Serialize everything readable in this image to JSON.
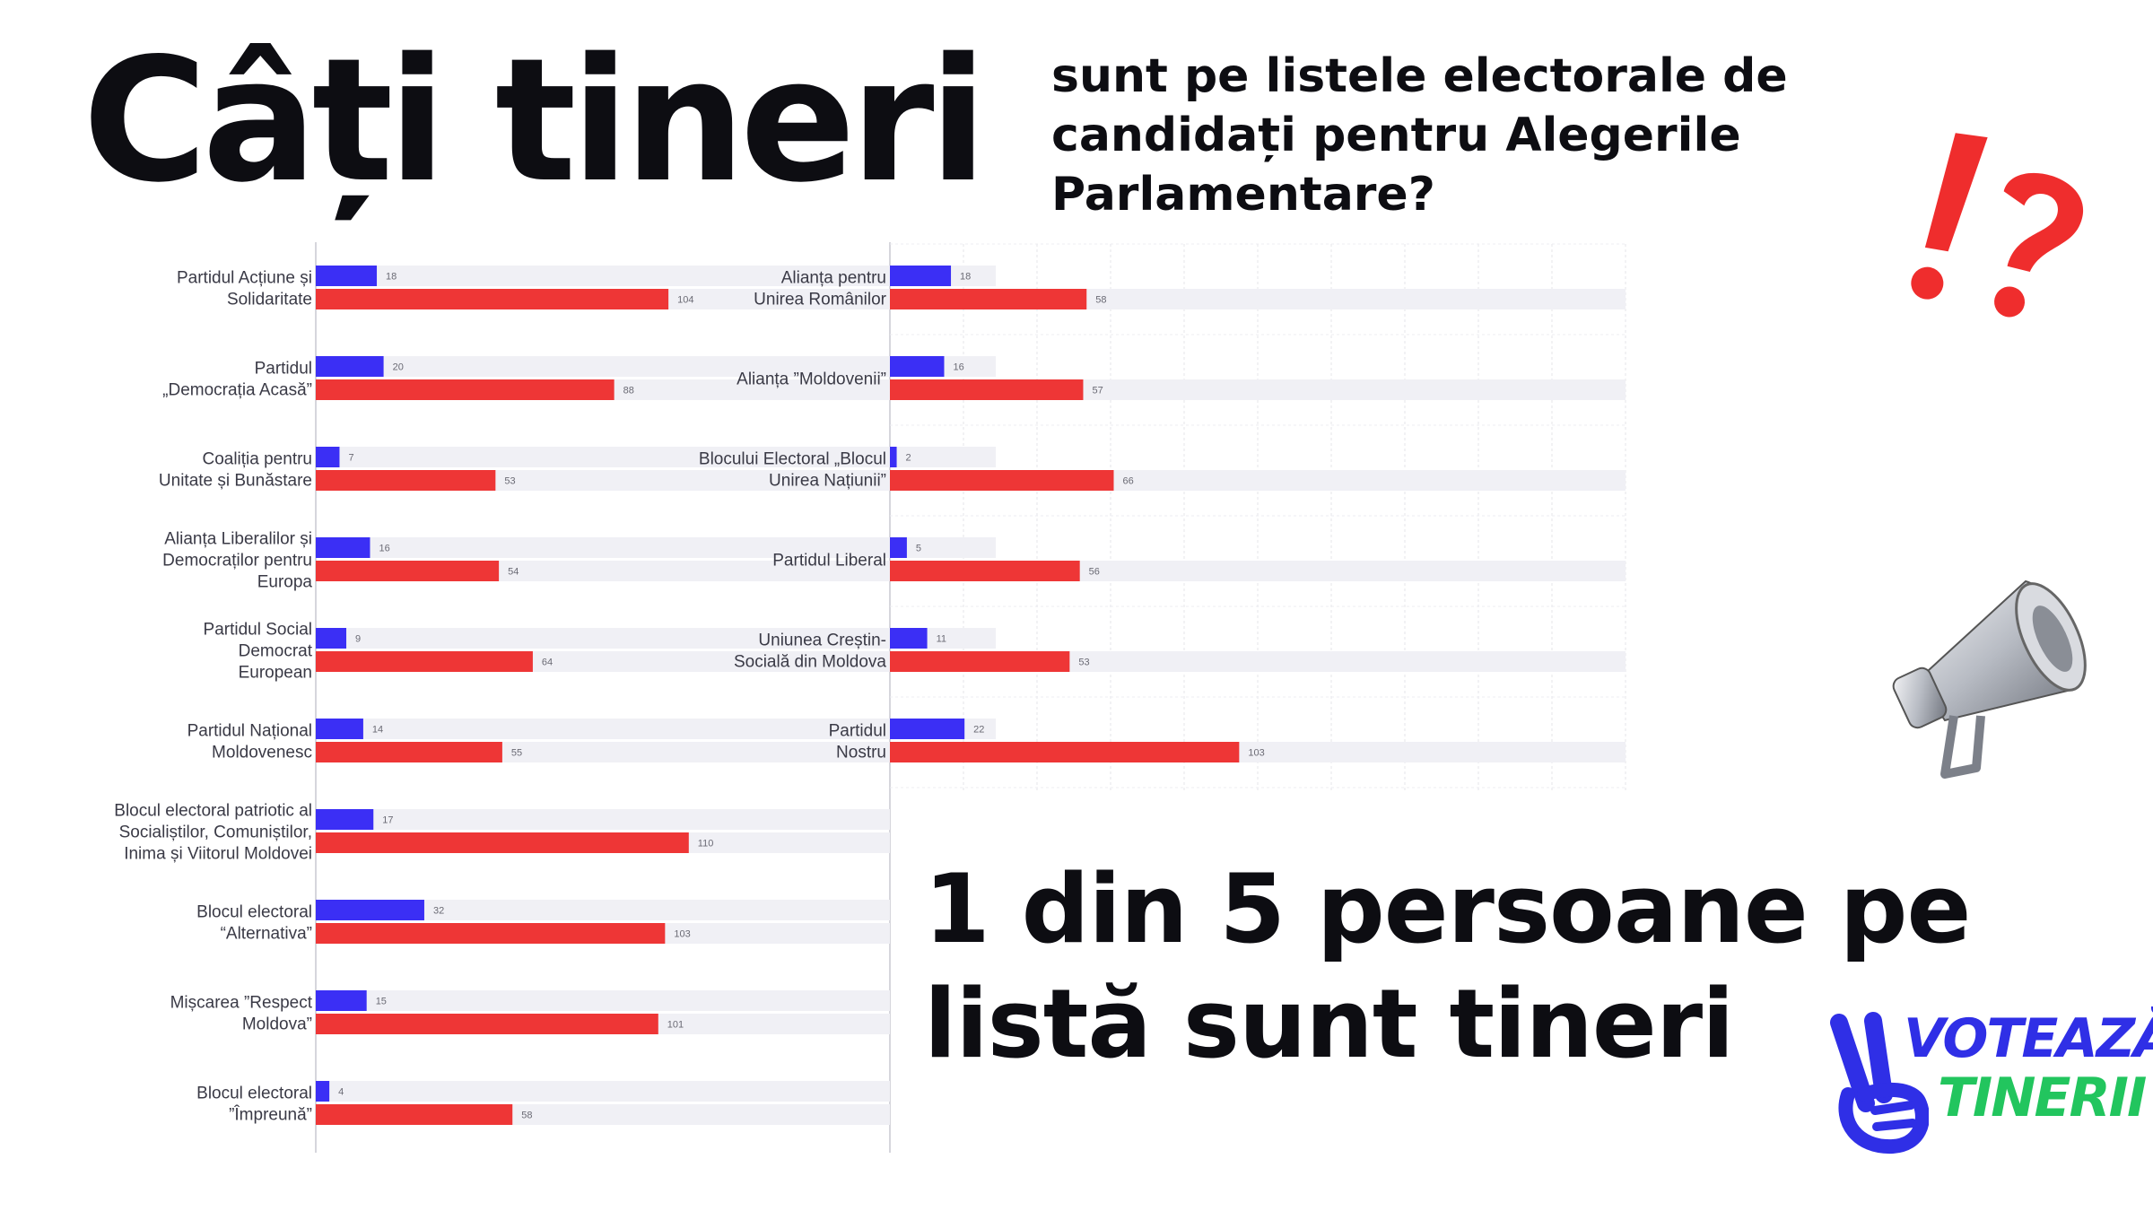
{
  "header": {
    "title": "Câți tineri",
    "subtitle": "sunt pe listele electorale de candidați pentru Alegerile Parlamentare?"
  },
  "conclusion": "1 din 5 persoane pe listă sunt tineri",
  "logo": {
    "line1": "VOTEAZĂ",
    "line2": "TINERII"
  },
  "icons": [
    "exclamation-question-icon",
    "megaphone-icon"
  ],
  "colors": {
    "youth": "#3b2ff5",
    "total": "#ee3636",
    "track": "#f0f0f5",
    "text": "#0d0d12"
  },
  "chart_data": [
    {
      "type": "bar",
      "orientation": "horizontal",
      "series": [
        {
          "name": "",
          "color": "#3b2ff5"
        },
        {
          "name": "",
          "color": "#ee3636"
        }
      ],
      "categories": [
        [
          "Partidul Acțiune și",
          "Solidaritate"
        ],
        [
          "Partidul",
          "„Democrația Acasă”"
        ],
        [
          "Coaliția pentru",
          "Unitate și Bunăstare"
        ],
        [
          "Alianța Liberalilor și",
          "Democraților pentru",
          "Europa"
        ],
        [
          "Partidul Social",
          "Democrat",
          "European"
        ],
        [
          "Partidul Național",
          "Moldovenesc"
        ],
        [
          "Blocul electoral patriotic al",
          "Socialiștilor, Comuniștilor,",
          "Inima și Viitorul Moldovei"
        ],
        [
          "Blocul electoral",
          "“Alternativa”"
        ],
        [
          "Mișcarea ”Respect",
          "Moldova”"
        ],
        [
          "Blocul electoral",
          "”Împreună”"
        ]
      ],
      "youth": [
        18,
        20,
        7,
        16,
        9,
        14,
        17,
        32,
        15,
        4
      ],
      "total": [
        104,
        88,
        53,
        54,
        64,
        55,
        110,
        103,
        101,
        58
      ],
      "xlim": [
        0,
        170
      ]
    },
    {
      "type": "bar",
      "orientation": "horizontal",
      "series": [
        {
          "name": "",
          "color": "#3b2ff5"
        },
        {
          "name": "",
          "color": "#ee3636"
        }
      ],
      "categories": [
        [
          "Alianța pentru",
          "Unirea Românilor"
        ],
        [
          "Alianța ”Moldovenii”"
        ],
        [
          "Blocului Electoral „Blocul",
          "Unirea Națiunii”"
        ],
        [
          "Partidul Liberal"
        ],
        [
          "Uniunea Creștin-",
          "Socială din Moldova"
        ],
        [
          "Partidul",
          "Nostru"
        ]
      ],
      "youth": [
        18,
        16,
        2,
        5,
        11,
        22
      ],
      "total": [
        58,
        57,
        66,
        56,
        53,
        103
      ],
      "xlim": [
        0,
        200
      ]
    }
  ]
}
